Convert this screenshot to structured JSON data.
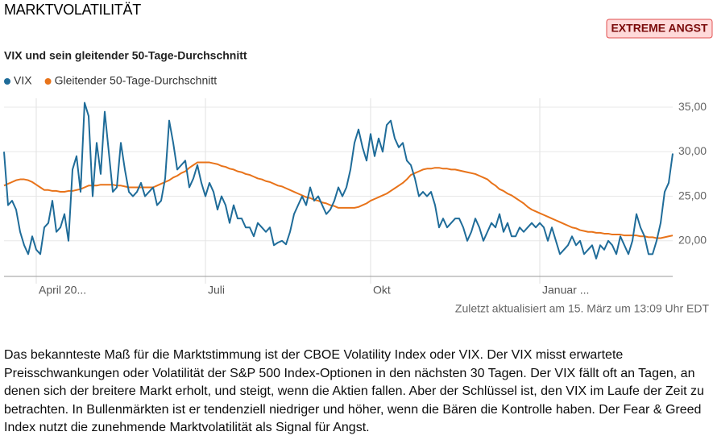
{
  "header": {
    "title": "MARKTVOLATILITÄT",
    "badge": "EXTREME ANGST"
  },
  "chart_data": {
    "type": "line",
    "title": "VIX und sein gleitender 50-Tage-Durchschnitt",
    "categories": [
      null,
      null,
      null,
      null,
      null,
      null,
      null,
      null,
      "April 20...",
      null,
      null,
      null,
      null,
      null,
      null,
      null,
      null,
      null,
      null,
      null,
      null,
      null,
      null,
      null,
      null,
      null,
      null,
      null,
      null,
      null,
      null,
      null,
      null,
      null,
      null,
      null,
      null,
      null,
      null,
      null,
      null,
      null,
      null,
      null,
      null,
      null,
      null,
      null,
      null,
      null,
      "Juli",
      null,
      null,
      null,
      null,
      null,
      null,
      null,
      null,
      null,
      null,
      null,
      null,
      null,
      null,
      null,
      null,
      null,
      null,
      null,
      null,
      null,
      null,
      null,
      null,
      null,
      null,
      null,
      null,
      null,
      null,
      null,
      null,
      null,
      null,
      null,
      null,
      null,
      null,
      null,
      null,
      "Okt",
      null,
      null,
      null,
      null,
      null,
      null,
      null,
      null,
      null,
      null,
      null,
      null,
      null,
      null,
      null,
      null,
      null,
      null,
      null,
      null,
      null,
      null,
      null,
      null,
      null,
      null,
      null,
      null,
      null,
      null,
      null,
      null,
      null,
      null,
      null,
      null,
      null,
      null,
      null,
      null,
      null,
      "Januar ...",
      null,
      null,
      null,
      null,
      null,
      null,
      null,
      null,
      null,
      null,
      null,
      null,
      null,
      null,
      null,
      null,
      null,
      null,
      null,
      null,
      null,
      null,
      null,
      null,
      null,
      null,
      null,
      null,
      null,
      null,
      null,
      null,
      null
    ],
    "series": [
      {
        "name": "VIX",
        "color": "#1f6c99",
        "values": [
          30,
          24,
          24.5,
          23.5,
          21,
          19.5,
          18.5,
          20.5,
          19,
          18.5,
          21.5,
          22,
          24.5,
          21,
          21.5,
          23,
          20,
          28,
          29.5,
          25.5,
          35.5,
          34,
          25,
          31,
          27.5,
          34.5,
          30,
          25.5,
          26,
          31,
          28,
          25.5,
          25,
          25.5,
          26.5,
          25,
          25.5,
          26,
          24,
          24.5,
          27,
          33.5,
          31,
          28,
          28.5,
          29,
          26,
          27,
          28.5,
          26.5,
          25,
          26.5,
          25.5,
          23.5,
          25,
          24,
          22,
          24,
          22.5,
          22.5,
          21.5,
          21.5,
          20.5,
          22,
          21.5,
          21,
          21.5,
          19.5,
          19.8,
          20,
          19.6,
          21,
          23,
          24,
          25,
          24,
          26,
          24.5,
          25,
          24,
          23,
          23.5,
          24.5,
          26,
          25,
          26,
          28,
          31,
          32.5,
          30.5,
          29,
          32,
          29.5,
          31.5,
          30,
          33,
          33.5,
          31.5,
          30.5,
          31,
          29,
          28.5,
          27,
          25,
          25.5,
          25,
          25.5,
          24,
          21.5,
          22.5,
          21.5,
          22,
          22.5,
          22.5,
          21.5,
          20,
          21,
          22.5,
          21.5,
          20,
          21,
          22,
          21.5,
          23,
          21,
          22,
          20.5,
          20.5,
          21.5,
          21,
          21.5,
          22,
          21.5,
          22,
          21.5,
          20,
          21.5,
          20,
          18.5,
          19,
          19.5,
          20.5,
          19.5,
          20,
          18.5,
          19,
          19.5,
          18,
          19.5,
          19,
          20,
          19.5,
          18.5,
          20.5,
          19.5,
          18.5,
          20,
          23,
          21.5,
          20.5,
          18.5,
          18.5,
          20,
          22,
          25.5,
          26.5,
          29.8
        ]
      },
      {
        "name": "Gleitender 50-Tage-Durchschnitt",
        "color": "#e8731a",
        "values": [
          26.2,
          26.4,
          26.6,
          26.8,
          26.9,
          26.9,
          26.8,
          26.6,
          26.3,
          26.0,
          25.7,
          25.7,
          25.6,
          25.6,
          25.5,
          25.5,
          25.6,
          25.6,
          25.7,
          25.8,
          26.0,
          26.2,
          26.2,
          26.2,
          26.3,
          26.3,
          26.3,
          26.3,
          26.2,
          26.2,
          26.1,
          26.0,
          26.0,
          26.0,
          26.0,
          26.0,
          26.0,
          26.0,
          26.2,
          26.4,
          26.6,
          26.8,
          27.1,
          27.3,
          27.6,
          27.8,
          28.2,
          28.5,
          28.8,
          28.8,
          28.8,
          28.8,
          28.7,
          28.6,
          28.4,
          28.3,
          28.1,
          28.0,
          27.8,
          27.7,
          27.5,
          27.4,
          27.2,
          27.0,
          26.9,
          26.7,
          26.6,
          26.4,
          26.2,
          26.1,
          25.9,
          25.7,
          25.5,
          25.3,
          25.1,
          24.9,
          24.8,
          24.6,
          24.5,
          24.3,
          24.2,
          24.0,
          23.9,
          23.7,
          23.7,
          23.7,
          23.7,
          23.7,
          23.8,
          24.0,
          24.2,
          24.5,
          24.7,
          24.9,
          25.1,
          25.3,
          25.6,
          25.9,
          26.2,
          26.5,
          26.9,
          27.4,
          27.6,
          27.8,
          28.0,
          28.1,
          28.1,
          28.2,
          28.2,
          28.1,
          28.1,
          28.0,
          28.0,
          27.9,
          27.8,
          27.7,
          27.6,
          27.5,
          27.3,
          27.1,
          26.9,
          26.5,
          26.2,
          25.8,
          25.6,
          25.3,
          25.1,
          24.8,
          24.5,
          24.2,
          23.8,
          23.5,
          23.3,
          23.1,
          22.9,
          22.7,
          22.5,
          22.3,
          22.1,
          21.9,
          21.7,
          21.5,
          21.4,
          21.2,
          21.1,
          21.0,
          21.0,
          20.9,
          20.9,
          20.8,
          20.8,
          20.7,
          20.7,
          20.7,
          20.6,
          20.6,
          20.6,
          20.6,
          20.5,
          20.5,
          20.4,
          20.4,
          20.3,
          20.3,
          20.4,
          20.5,
          20.6
        ]
      }
    ],
    "ylim": [
      16,
      36
    ],
    "yticks": [
      {
        "value": 20,
        "label": "20,00"
      },
      {
        "value": 25,
        "label": "25,00"
      },
      {
        "value": 30,
        "label": "30,00"
      },
      {
        "value": 35,
        "label": "35,00"
      }
    ],
    "grid": true,
    "legend": "top-left"
  },
  "updated": "Zuletzt aktualisiert am 15. März um 13:09 Uhr EDT",
  "description": "Das bekannteste Maß für die Marktstimmung ist der CBOE Volatility Index oder VIX. Der VIX misst erwartete Preisschwankungen oder Volatilität der S&P 500 Index-Optionen in den nächsten 30 Tagen. Der VIX fällt oft an Tagen, an denen sich der breitere Markt erholt, und steigt, wenn die Aktien fallen. Aber der Schlüssel ist, den VIX im Laufe der Zeit zu betrachten. In Bullenmärkten ist er tendenziell niedriger und höher, wenn die Bären die Kontrolle haben. Der Fear & Greed Index nutzt die zunehmende Marktvolatilität als Signal für Angst."
}
